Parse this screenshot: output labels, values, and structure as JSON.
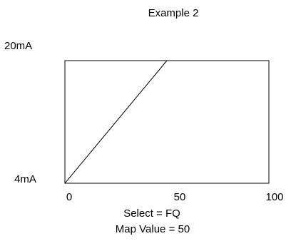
{
  "chart_data": {
    "type": "line",
    "title": "Example 2",
    "xlabel": "",
    "ylabel": "",
    "xlim": [
      0,
      100
    ],
    "ylim": [
      4,
      20
    ],
    "x_ticks": [
      "0",
      "50",
      "100"
    ],
    "y_ticks": [
      "4mA",
      "20mA"
    ],
    "grid": false,
    "legend": "none",
    "series": [
      {
        "x": [
          0,
          50
        ],
        "y": [
          4,
          20
        ]
      }
    ],
    "annotations": [
      "Select = FQ",
      "Map Value = 50"
    ],
    "colors": {
      "line": "#000000",
      "frame": "#000000"
    }
  }
}
